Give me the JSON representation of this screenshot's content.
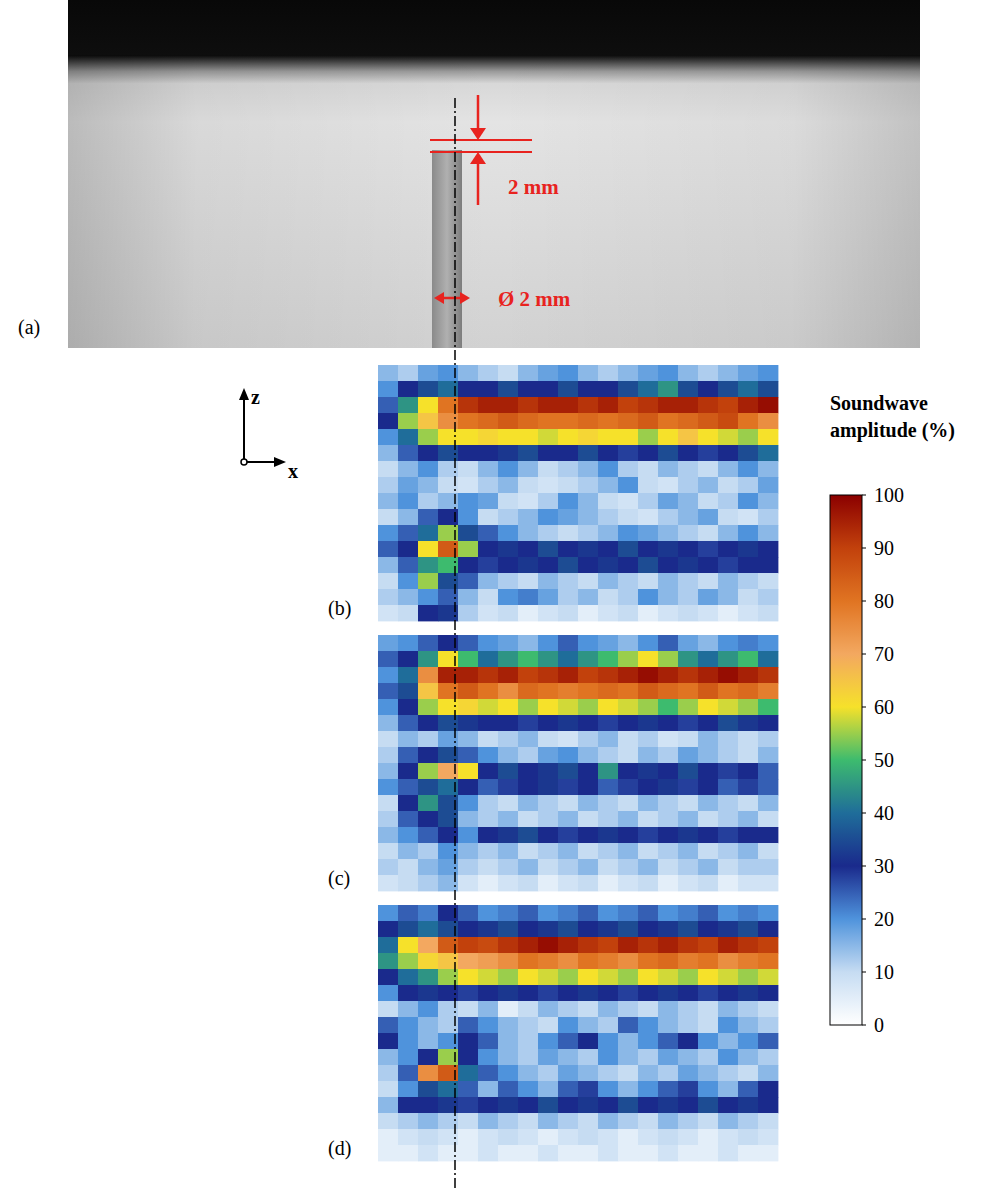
{
  "chart_data": {
    "type": "heatmap",
    "colorbar": {
      "title": "Soundwave amplitude (%)",
      "range": [
        0,
        100
      ],
      "ticks": [
        0,
        10,
        20,
        30,
        40,
        50,
        60,
        70,
        80,
        90,
        100
      ]
    },
    "panels": [
      {
        "label": "(b)",
        "cells": [
          [
            15,
            12,
            18,
            20,
            15,
            12,
            10,
            15,
            18,
            20,
            15,
            12,
            15,
            18,
            20,
            15,
            12,
            15,
            18,
            20
          ],
          [
            20,
            30,
            35,
            40,
            30,
            30,
            35,
            30,
            30,
            35,
            30,
            30,
            35,
            40,
            45,
            35,
            30,
            35,
            40,
            35
          ],
          [
            25,
            45,
            60,
            80,
            92,
            95,
            95,
            92,
            95,
            95,
            92,
            95,
            90,
            92,
            95,
            95,
            92,
            90,
            95,
            98
          ],
          [
            30,
            55,
            65,
            75,
            80,
            82,
            85,
            82,
            80,
            80,
            82,
            80,
            82,
            85,
            80,
            82,
            85,
            88,
            80,
            75
          ],
          [
            20,
            40,
            55,
            60,
            60,
            62,
            60,
            60,
            58,
            60,
            62,
            60,
            60,
            55,
            60,
            65,
            60,
            58,
            55,
            60
          ],
          [
            15,
            25,
            30,
            35,
            30,
            30,
            32,
            35,
            30,
            30,
            35,
            30,
            28,
            30,
            35,
            30,
            28,
            30,
            35,
            40
          ],
          [
            10,
            15,
            20,
            12,
            10,
            15,
            20,
            15,
            10,
            12,
            15,
            20,
            12,
            10,
            15,
            12,
            10,
            15,
            20,
            15
          ],
          [
            12,
            18,
            15,
            10,
            8,
            12,
            15,
            10,
            8,
            10,
            12,
            15,
            20,
            10,
            8,
            12,
            15,
            10,
            12,
            18
          ],
          [
            15,
            20,
            12,
            15,
            20,
            18,
            10,
            8,
            12,
            20,
            15,
            10,
            8,
            12,
            18,
            15,
            10,
            12,
            20,
            15
          ],
          [
            10,
            15,
            25,
            30,
            20,
            10,
            12,
            15,
            20,
            18,
            15,
            12,
            10,
            8,
            12,
            15,
            18,
            10,
            8,
            12
          ],
          [
            20,
            25,
            40,
            55,
            35,
            25,
            20,
            15,
            12,
            10,
            12,
            15,
            20,
            18,
            15,
            12,
            10,
            15,
            20,
            15
          ],
          [
            25,
            30,
            60,
            85,
            55,
            30,
            32,
            30,
            35,
            30,
            32,
            30,
            35,
            30,
            32,
            30,
            28,
            30,
            32,
            30
          ],
          [
            15,
            25,
            45,
            50,
            30,
            28,
            30,
            32,
            30,
            35,
            30,
            32,
            30,
            35,
            30,
            32,
            30,
            28,
            30,
            30
          ],
          [
            10,
            20,
            55,
            35,
            25,
            15,
            12,
            10,
            15,
            12,
            10,
            15,
            12,
            10,
            15,
            12,
            10,
            15,
            12,
            10
          ],
          [
            12,
            15,
            20,
            25,
            15,
            10,
            20,
            22,
            18,
            12,
            15,
            10,
            12,
            20,
            15,
            12,
            18,
            15,
            10,
            12
          ],
          [
            8,
            10,
            30,
            32,
            12,
            8,
            10,
            5,
            8,
            10,
            5,
            8,
            10,
            5,
            8,
            10,
            8,
            5,
            8,
            10
          ]
        ]
      },
      {
        "label": "(c)",
        "cells": [
          [
            18,
            20,
            25,
            30,
            25,
            20,
            18,
            15,
            20,
            25,
            20,
            18,
            15,
            20,
            25,
            18,
            15,
            20,
            22,
            20
          ],
          [
            25,
            30,
            45,
            60,
            50,
            40,
            45,
            50,
            45,
            40,
            45,
            50,
            55,
            60,
            55,
            45,
            40,
            45,
            50,
            40
          ],
          [
            20,
            40,
            75,
            95,
            95,
            92,
            95,
            90,
            92,
            95,
            90,
            92,
            95,
            98,
            95,
            92,
            95,
            98,
            95,
            92
          ],
          [
            25,
            35,
            65,
            80,
            85,
            80,
            75,
            82,
            80,
            78,
            80,
            82,
            80,
            85,
            82,
            80,
            85,
            80,
            82,
            78
          ],
          [
            20,
            30,
            55,
            60,
            62,
            58,
            60,
            55,
            60,
            58,
            55,
            60,
            58,
            55,
            50,
            55,
            60,
            58,
            55,
            50
          ],
          [
            15,
            25,
            30,
            35,
            32,
            30,
            30,
            28,
            30,
            32,
            30,
            28,
            30,
            32,
            30,
            28,
            30,
            35,
            32,
            30
          ],
          [
            10,
            15,
            12,
            18,
            15,
            10,
            12,
            15,
            10,
            8,
            12,
            15,
            10,
            12,
            8,
            10,
            15,
            12,
            10,
            12
          ],
          [
            12,
            25,
            30,
            35,
            25,
            20,
            15,
            12,
            18,
            20,
            15,
            12,
            10,
            15,
            12,
            18,
            15,
            12,
            10,
            15
          ],
          [
            15,
            30,
            55,
            70,
            60,
            30,
            35,
            30,
            32,
            35,
            30,
            45,
            30,
            32,
            30,
            35,
            30,
            28,
            30,
            25
          ],
          [
            20,
            25,
            35,
            40,
            30,
            25,
            28,
            30,
            32,
            28,
            30,
            25,
            28,
            30,
            32,
            28,
            30,
            25,
            28,
            25
          ],
          [
            10,
            30,
            45,
            35,
            20,
            12,
            10,
            15,
            12,
            10,
            15,
            12,
            10,
            15,
            12,
            10,
            15,
            12,
            10,
            15
          ],
          [
            12,
            25,
            30,
            35,
            15,
            12,
            15,
            10,
            12,
            15,
            10,
            12,
            15,
            10,
            12,
            15,
            10,
            12,
            15,
            10
          ],
          [
            15,
            20,
            25,
            30,
            20,
            30,
            32,
            35,
            30,
            28,
            30,
            32,
            30,
            28,
            30,
            32,
            30,
            28,
            30,
            30
          ],
          [
            10,
            15,
            12,
            20,
            15,
            12,
            15,
            10,
            12,
            15,
            10,
            12,
            15,
            10,
            12,
            15,
            10,
            12,
            15,
            10
          ],
          [
            12,
            10,
            15,
            18,
            12,
            10,
            12,
            15,
            10,
            12,
            15,
            10,
            12,
            15,
            10,
            12,
            15,
            10,
            12,
            12
          ],
          [
            8,
            10,
            12,
            15,
            8,
            5,
            8,
            10,
            5,
            8,
            10,
            5,
            8,
            10,
            5,
            8,
            10,
            5,
            8,
            8
          ]
        ]
      },
      {
        "label": "(d)",
        "cells": [
          [
            20,
            25,
            22,
            30,
            25,
            20,
            22,
            25,
            20,
            22,
            25,
            20,
            22,
            25,
            20,
            22,
            25,
            20,
            22,
            20
          ],
          [
            30,
            35,
            40,
            35,
            30,
            32,
            35,
            30,
            32,
            35,
            30,
            32,
            35,
            30,
            32,
            35,
            30,
            32,
            35,
            30
          ],
          [
            40,
            60,
            70,
            85,
            90,
            88,
            92,
            95,
            98,
            95,
            92,
            90,
            95,
            92,
            95,
            92,
            90,
            95,
            92,
            90
          ],
          [
            45,
            55,
            62,
            65,
            70,
            72,
            75,
            80,
            78,
            75,
            80,
            78,
            75,
            80,
            82,
            78,
            80,
            75,
            78,
            80
          ],
          [
            30,
            40,
            45,
            55,
            60,
            58,
            55,
            60,
            58,
            55,
            60,
            58,
            55,
            60,
            58,
            55,
            60,
            58,
            55,
            58
          ],
          [
            20,
            30,
            32,
            30,
            28,
            30,
            32,
            30,
            28,
            30,
            32,
            30,
            28,
            30,
            32,
            30,
            28,
            30,
            32,
            30
          ],
          [
            10,
            15,
            20,
            12,
            10,
            15,
            5,
            10,
            15,
            12,
            10,
            15,
            12,
            10,
            15,
            12,
            10,
            15,
            12,
            10
          ],
          [
            25,
            20,
            15,
            12,
            25,
            20,
            15,
            12,
            10,
            20,
            15,
            12,
            25,
            20,
            15,
            12,
            10,
            20,
            15,
            12
          ],
          [
            30,
            20,
            15,
            20,
            30,
            25,
            15,
            12,
            20,
            25,
            30,
            20,
            15,
            20,
            25,
            30,
            20,
            15,
            20,
            25
          ],
          [
            15,
            20,
            30,
            55,
            30,
            20,
            15,
            12,
            18,
            15,
            12,
            20,
            15,
            12,
            18,
            15,
            12,
            20,
            15,
            12
          ],
          [
            12,
            25,
            75,
            85,
            40,
            25,
            20,
            15,
            12,
            18,
            15,
            12,
            10,
            15,
            12,
            18,
            15,
            12,
            10,
            15
          ],
          [
            10,
            20,
            35,
            40,
            25,
            15,
            25,
            20,
            15,
            25,
            28,
            20,
            15,
            20,
            25,
            28,
            20,
            15,
            25,
            30
          ],
          [
            15,
            30,
            30,
            32,
            28,
            30,
            32,
            30,
            35,
            30,
            32,
            30,
            35,
            30,
            32,
            30,
            35,
            30,
            32,
            30
          ],
          [
            10,
            12,
            15,
            12,
            10,
            15,
            12,
            10,
            15,
            12,
            10,
            15,
            12,
            10,
            15,
            12,
            10,
            15,
            12,
            10
          ],
          [
            5,
            8,
            10,
            8,
            5,
            8,
            10,
            8,
            5,
            8,
            10,
            8,
            5,
            8,
            10,
            8,
            5,
            8,
            10,
            8
          ],
          [
            5,
            5,
            8,
            5,
            5,
            8,
            5,
            5,
            8,
            5,
            5,
            8,
            5,
            5,
            8,
            5,
            5,
            8,
            5,
            5
          ]
        ]
      }
    ]
  },
  "photo": {
    "label": "(a)",
    "depth_label": "2 mm",
    "diameter_label": "Ø 2 mm"
  },
  "axes_icon": {
    "z": "z",
    "x": "x"
  }
}
